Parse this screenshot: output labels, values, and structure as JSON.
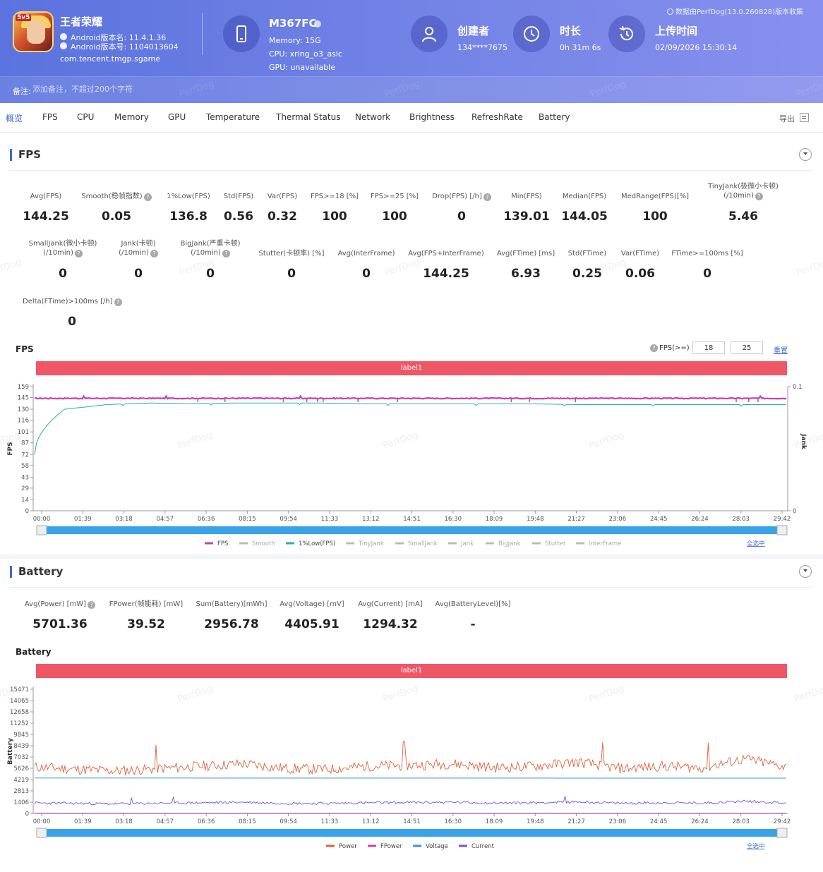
{
  "header": {
    "app": {
      "name": "王者荣耀",
      "android_version": "Android版本名: 11.4.1.36",
      "android_code": "Android版本号: 1104013604",
      "package": "com.tencent.tmgp.sgame",
      "icon_tag": "5v5"
    },
    "device": {
      "name": "M367FC",
      "memory": "Memory: 15G",
      "cpu": "CPU: xring_o3_asic",
      "gpu": "GPU: unavailable"
    },
    "creator": {
      "title": "创建者",
      "value": "134****7675"
    },
    "duration": {
      "title": "时长",
      "value": "0h 31m 6s"
    },
    "upload": {
      "title": "上传时间",
      "value": "02/09/2026 15:30:14"
    },
    "source": "数据由PerfDog(13.0.260828)版本收集",
    "note_label": "备注:",
    "note_placeholder": "添加备注，不超过200个字符",
    "watermark": "PerfDog"
  },
  "tabs": [
    "概览",
    "FPS",
    "CPU",
    "Memory",
    "GPU",
    "Temperature",
    "Thermal Status",
    "Network",
    "Brightness",
    "RefreshRate",
    "Battery"
  ],
  "export_label": "导出",
  "fps_section": {
    "title": "FPS",
    "row1": [
      {
        "label": "Avg(FPS)",
        "value": "144.25"
      },
      {
        "label": "Smooth(稳帧指数)",
        "value": "0.05"
      },
      {
        "label": "1%Low(FPS)",
        "value": "136.8"
      },
      {
        "label": "Std(FPS)",
        "value": "0.56"
      },
      {
        "label": "Var(FPS)",
        "value": "0.32"
      },
      {
        "label": "FPS>=18 [%]",
        "value": "100"
      },
      {
        "label": "FPS>=25 [%]",
        "value": "100"
      },
      {
        "label": "Drop(FPS) [/h]",
        "value": "0"
      },
      {
        "label": "Min(FPS)",
        "value": "139.01"
      },
      {
        "label": "Median(FPS)",
        "value": "144.05"
      },
      {
        "label": "MedRange(FPS)[%]",
        "value": "100"
      },
      {
        "label": "TinyJank(极微小卡顿)",
        "label2": "(/10min)",
        "value": "5.46"
      }
    ],
    "row2": [
      {
        "label": "SmallJank(微小卡顿)",
        "label2": "(/10min)",
        "value": "0"
      },
      {
        "label": "Jank(卡顿)",
        "label2": "(/10min)",
        "value": "0"
      },
      {
        "label": "BigJank(严重卡顿)",
        "label2": "(/10min)",
        "value": "0"
      },
      {
        "label": "Stutter(卡顿率) [%]",
        "value": "0"
      },
      {
        "label": "Avg(InterFrame)",
        "value": "0"
      },
      {
        "label": "Avg(FPS+InterFrame)",
        "value": "144.25"
      },
      {
        "label": "Avg(FTime) [ms]",
        "value": "6.93"
      },
      {
        "label": "Std(FTime)",
        "value": "0.25"
      },
      {
        "label": "Var(FTime)",
        "value": "0.06"
      },
      {
        "label": "FTime>=100ms [%]",
        "value": "0"
      }
    ],
    "row3": [
      {
        "label": "Delta(FTime)>100ms [/h]",
        "value": "0"
      }
    ],
    "chart_title": "FPS",
    "threshold_label": "FPS(>=)",
    "threshold_1": "18",
    "threshold_2": "25",
    "reset_label": "重置",
    "label_bar": "label1",
    "ylabel": "FPS",
    "y2label": "Jank",
    "y_ticks": [
      "0",
      "14",
      "29",
      "43",
      "58",
      "72",
      "87",
      "101",
      "116",
      "130",
      "145",
      "159"
    ],
    "y2_ticks": [
      "0",
      "0.1"
    ],
    "x_ticks": [
      "00:00",
      "01:39",
      "03:18",
      "04:57",
      "06:36",
      "08:15",
      "09:54",
      "11:33",
      "13:12",
      "14:51",
      "16:30",
      "18:09",
      "19:48",
      "21:27",
      "23:06",
      "24:45",
      "26:24",
      "28:03",
      "29:42"
    ],
    "legend": [
      {
        "name": "FPS",
        "color": "#c73fb5",
        "active": true
      },
      {
        "name": "Smooth",
        "color": "#bbbbbb",
        "active": false
      },
      {
        "name": "1%Low(FPS)",
        "color": "#26b39b",
        "active": true
      },
      {
        "name": "TinyJank",
        "color": "#bbbbbb",
        "active": false
      },
      {
        "name": "SmallJank",
        "color": "#bbbbbb",
        "active": false
      },
      {
        "name": "Jank",
        "color": "#bbbbbb",
        "active": false
      },
      {
        "name": "BigJank",
        "color": "#bbbbbb",
        "active": false
      },
      {
        "name": "Stutter",
        "color": "#bbbbbb",
        "active": false
      },
      {
        "name": "InterFrame",
        "color": "#bbbbbb",
        "active": false
      }
    ],
    "legend_action": "全选中"
  },
  "battery_section": {
    "title": "Battery",
    "metrics": [
      {
        "label": "Avg(Power) [mW]",
        "value": "5701.36",
        "help": true
      },
      {
        "label": "FPower(帧能耗) [mW]",
        "value": "39.52"
      },
      {
        "label": "Sum(Battery)[mWh]",
        "value": "2956.78"
      },
      {
        "label": "Avg(Voltage) [mV]",
        "value": "4405.91"
      },
      {
        "label": "Avg(Current) [mA]",
        "value": "1294.32"
      },
      {
        "label": "Avg(BatteryLevel)[%]",
        "value": "-"
      }
    ],
    "chart_title": "Battery",
    "label_bar": "label1",
    "ylabel": "Battery",
    "y_ticks": [
      "0",
      "1406",
      "2813",
      "4219",
      "5626",
      "7032",
      "8439",
      "9845",
      "11252",
      "12658",
      "14065",
      "15471"
    ],
    "x_ticks": [
      "00:00",
      "01:39",
      "03:18",
      "04:57",
      "06:36",
      "08:15",
      "09:54",
      "11:33",
      "13:12",
      "14:51",
      "16:30",
      "18:09",
      "19:48",
      "21:27",
      "23:06",
      "24:45",
      "26:24",
      "28:03",
      "29:42"
    ],
    "legend": [
      {
        "name": "Power",
        "color": "#e0603a"
      },
      {
        "name": "FPower",
        "color": "#c73fb5"
      },
      {
        "name": "Voltage",
        "color": "#3d8fe0"
      },
      {
        "name": "Current",
        "color": "#7b4fd8"
      }
    ],
    "legend_action": "全选中"
  },
  "chart_data": [
    {
      "type": "line",
      "title": "FPS",
      "ylabel": "FPS",
      "ylim": [
        0,
        159
      ],
      "x": [
        "00:00",
        "01:39",
        "03:18",
        "04:57",
        "06:36",
        "08:15",
        "09:54",
        "11:33",
        "13:12",
        "14:51",
        "16:30",
        "18:09",
        "19:48",
        "21:27",
        "23:06",
        "24:45",
        "26:24",
        "28:03",
        "29:42"
      ],
      "series": [
        {
          "name": "FPS",
          "values": [
            144,
            144,
            144,
            144,
            144,
            144,
            144,
            144,
            144,
            144,
            144,
            144,
            144,
            144,
            144,
            144,
            144,
            144,
            144
          ]
        },
        {
          "name": "1%Low(FPS)",
          "values": [
            72,
            130,
            136,
            138,
            137,
            138,
            138,
            138,
            137,
            137,
            137,
            137,
            137,
            136,
            136,
            136,
            136,
            136,
            136
          ]
        }
      ]
    },
    {
      "type": "line",
      "title": "Battery",
      "ylabel": "Battery",
      "ylim": [
        0,
        15471
      ],
      "x": [
        "00:00",
        "01:39",
        "03:18",
        "04:57",
        "06:36",
        "08:15",
        "09:54",
        "11:33",
        "13:12",
        "14:51",
        "16:30",
        "18:09",
        "19:48",
        "21:27",
        "23:06",
        "24:45",
        "26:24",
        "28:03",
        "29:42"
      ],
      "series": [
        {
          "name": "Power",
          "values": [
            5800,
            5500,
            5300,
            5600,
            5900,
            6200,
            5600,
            5500,
            5900,
            6000,
            6200,
            5700,
            5900,
            6400,
            5600,
            5900,
            5700,
            6800,
            5800
          ]
        },
        {
          "name": "FPower",
          "values": [
            40,
            40,
            40,
            40,
            40,
            40,
            40,
            40,
            40,
            40,
            40,
            40,
            40,
            40,
            40,
            40,
            40,
            40,
            40
          ]
        },
        {
          "name": "Voltage",
          "values": [
            4420,
            4415,
            4412,
            4410,
            4408,
            4406,
            4405,
            4404,
            4403,
            4402,
            4401,
            4400,
            4400,
            4399,
            4398,
            4398,
            4397,
            4396,
            4396
          ]
        },
        {
          "name": "Current",
          "values": [
            1300,
            1250,
            1200,
            1270,
            1330,
            1400,
            1270,
            1250,
            1330,
            1360,
            1400,
            1290,
            1330,
            1460,
            1270,
            1330,
            1290,
            1540,
            1310
          ]
        }
      ]
    }
  ]
}
